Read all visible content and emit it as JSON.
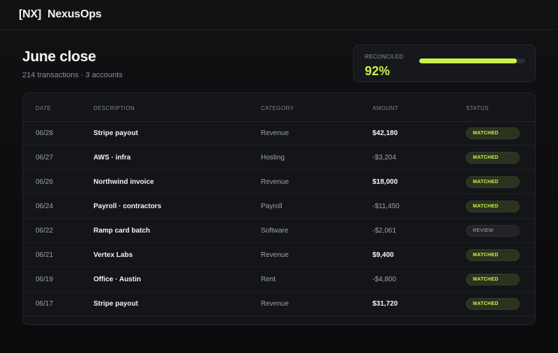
{
  "app": {
    "logo": "[NX]",
    "name": "NexusOps"
  },
  "page": {
    "title": "June close",
    "subtitle": "214 transactions · 3 accounts"
  },
  "reconciled": {
    "label": "RECONCILED",
    "value": "92%",
    "progress": 0.92,
    "accent": "#c9f24a"
  },
  "table": {
    "columns": [
      "DATE",
      "DESCRIPTION",
      "CATEGORY",
      "AMOUNT",
      "STATUS"
    ],
    "rows": [
      {
        "date": "06/28",
        "description": "Stripe payout",
        "category": "Revenue",
        "amount": "$42,180",
        "status": "MATCHED"
      },
      {
        "date": "06/27",
        "description": "AWS · infra",
        "category": "Hosting",
        "amount": "-$3,204",
        "status": "MATCHED"
      },
      {
        "date": "06/26",
        "description": "Northwind invoice",
        "category": "Revenue",
        "amount": "$18,000",
        "status": "MATCHED"
      },
      {
        "date": "06/24",
        "description": "Payroll · contractors",
        "category": "Payroll",
        "amount": "-$11,450",
        "status": "MATCHED"
      },
      {
        "date": "06/22",
        "description": "Ramp card batch",
        "category": "Software",
        "amount": "-$2,061",
        "status": "REVIEW"
      },
      {
        "date": "06/21",
        "description": "Vertex Labs",
        "category": "Revenue",
        "amount": "$9,400",
        "status": "MATCHED"
      },
      {
        "date": "06/19",
        "description": "Office · Austin",
        "category": "Rent",
        "amount": "-$4,800",
        "status": "MATCHED"
      },
      {
        "date": "06/17",
        "description": "Stripe payout",
        "category": "Revenue",
        "amount": "$31,720",
        "status": "MATCHED"
      }
    ]
  }
}
